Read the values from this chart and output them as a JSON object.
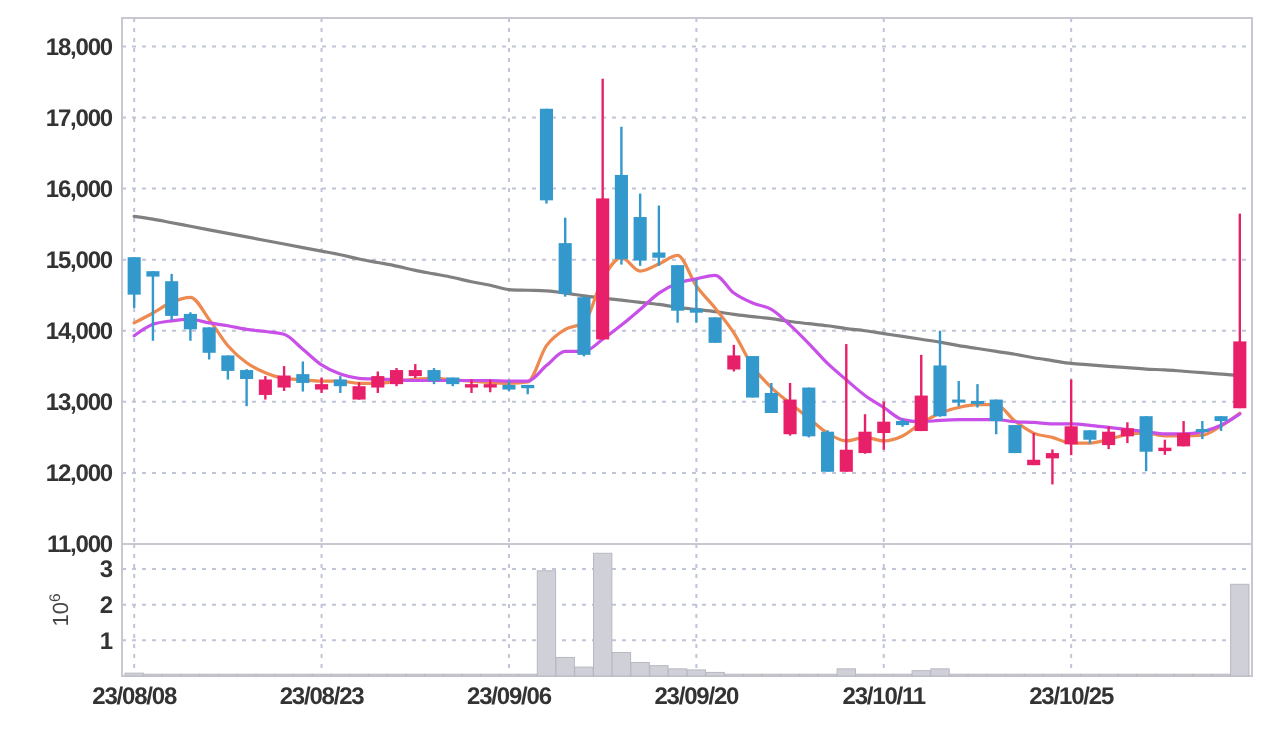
{
  "chart_data": [
    {
      "type": "candlestick",
      "categories": [
        null,
        null,
        null,
        null,
        null,
        null,
        null,
        null,
        null,
        null,
        null,
        null,
        null,
        null,
        null,
        null,
        null,
        null,
        null,
        null,
        null,
        null,
        null,
        null,
        null,
        null,
        null,
        null,
        null,
        null,
        null,
        null,
        null,
        null,
        null,
        null,
        null,
        null,
        null,
        null,
        null,
        null,
        null,
        null,
        null,
        null,
        null,
        null,
        null,
        null,
        null,
        null,
        null,
        null,
        null,
        null,
        null,
        null,
        null,
        null
      ],
      "ohlc": [
        [
          15035,
          15035,
          14321,
          14508
        ],
        [
          14838,
          14838,
          13859,
          14762
        ],
        [
          14697,
          14800,
          14152,
          14209
        ],
        [
          14237,
          14260,
          13859,
          14020
        ],
        [
          14048,
          14048,
          13596,
          13690
        ],
        [
          13653,
          13653,
          13314,
          13435
        ],
        [
          13447,
          13460,
          12939,
          13322
        ],
        [
          13097,
          13362,
          13032,
          13314
        ],
        [
          13201,
          13503,
          13153,
          13370
        ],
        [
          13390,
          13568,
          13145,
          13266
        ],
        [
          13173,
          13342,
          13125,
          13249
        ],
        [
          13314,
          13362,
          13125,
          13220
        ],
        [
          13032,
          13277,
          13032,
          13220
        ],
        [
          13201,
          13427,
          13125,
          13362
        ],
        [
          13249,
          13475,
          13220,
          13447
        ],
        [
          13362,
          13531,
          13334,
          13447
        ],
        [
          13447,
          13475,
          13249,
          13295
        ],
        [
          13342,
          13342,
          13220,
          13249
        ],
        [
          13201,
          13314,
          13125,
          13249
        ],
        [
          13201,
          13314,
          13135,
          13249
        ],
        [
          13238,
          13295,
          13153,
          13173
        ],
        [
          13238,
          13238,
          13107,
          13192
        ],
        [
          17123,
          17123,
          15789,
          15835
        ],
        [
          15233,
          15591,
          14480,
          14519
        ],
        [
          14471,
          14480,
          13640,
          13661
        ],
        [
          13878,
          17547,
          13878,
          15862
        ],
        [
          16192,
          16870,
          14931,
          15007
        ],
        [
          15600,
          15930,
          14914,
          14988
        ],
        [
          15101,
          15761,
          14914,
          15027
        ],
        [
          14923,
          14923,
          14113,
          14282
        ],
        [
          14310,
          14725,
          14113,
          14254
        ],
        [
          14189,
          14189,
          13830,
          13830
        ],
        [
          13455,
          13802,
          13427,
          13653
        ],
        [
          13644,
          13644,
          13060,
          13060
        ],
        [
          13125,
          13266,
          12843,
          12843
        ],
        [
          12544,
          13266,
          12525,
          13032
        ],
        [
          13201,
          13201,
          12500,
          12515
        ],
        [
          12580,
          12600,
          12016,
          12016
        ],
        [
          12016,
          13813,
          12016,
          12326
        ],
        [
          12279,
          12826,
          12270,
          12580
        ],
        [
          12561,
          13004,
          12326,
          12721
        ],
        [
          12730,
          12760,
          12650,
          12673
        ],
        [
          12589,
          13661,
          12589,
          13088
        ],
        [
          13512,
          14000,
          12790,
          12798
        ],
        [
          13032,
          13294,
          12939,
          13020
        ],
        [
          13012,
          13249,
          12920,
          13000
        ],
        [
          13032,
          13032,
          12544,
          12730
        ],
        [
          12673,
          12673,
          12279,
          12279
        ],
        [
          12109,
          12561,
          12109,
          12185
        ],
        [
          12205,
          12330,
          11838,
          12279
        ],
        [
          12402,
          13314,
          12250,
          12656
        ],
        [
          12600,
          12600,
          12410,
          12467
        ],
        [
          12391,
          12656,
          12335,
          12580
        ],
        [
          12515,
          12712,
          12420,
          12628
        ],
        [
          12798,
          12798,
          12024,
          12298
        ],
        [
          12307,
          12467,
          12255,
          12355
        ],
        [
          12374,
          12730,
          12374,
          12561
        ],
        [
          12617,
          12730,
          12476,
          12580
        ],
        [
          12798,
          12798,
          12591,
          12730
        ],
        [
          12910,
          15648,
          12910,
          13850
        ]
      ],
      "colors": [
        "#3399cc",
        "#3399cc",
        "#3399cc",
        "#3399cc",
        "#3399cc",
        "#3399cc",
        "#3399cc",
        "#e8206a",
        "#e8206a",
        "#3399cc",
        "#e8206a",
        "#3399cc",
        "#e8206a",
        "#e8206a",
        "#e8206a",
        "#e8206a",
        "#3399cc",
        "#3399cc",
        "#e8206a",
        "#e8206a",
        "#3399cc",
        "#3399cc",
        "#3399cc",
        "#3399cc",
        "#3399cc",
        "#e8206a",
        "#3399cc",
        "#3399cc",
        "#3399cc",
        "#3399cc",
        "#3399cc",
        "#3399cc",
        "#e8206a",
        "#3399cc",
        "#3399cc",
        "#e8206a",
        "#3399cc",
        "#3399cc",
        "#e8206a",
        "#e8206a",
        "#e8206a",
        "#3399cc",
        "#e8206a",
        "#3399cc",
        "#3399cc",
        "#3399cc",
        "#3399cc",
        "#3399cc",
        "#e8206a",
        "#e8206a",
        "#e8206a",
        "#3399cc",
        "#e8206a",
        "#e8206a",
        "#3399cc",
        "#e8206a",
        "#e8206a",
        "#3399cc",
        "#3399cc",
        "#e8206a"
      ],
      "series": [
        {
          "type": "line",
          "color": "#808080",
          "values": [
            15610,
            15570,
            15520,
            15470,
            15420,
            15370,
            15320,
            15270,
            15220,
            15170,
            15120,
            15070,
            15010,
            14960,
            14910,
            14850,
            14800,
            14750,
            14690,
            14640,
            14580,
            14570,
            14560,
            14530,
            14490,
            14460,
            14430,
            14400,
            14370,
            14330,
            14300,
            14270,
            14230,
            14200,
            14170,
            14130,
            14100,
            14070,
            14030,
            14000,
            13960,
            13920,
            13880,
            13840,
            13790,
            13750,
            13710,
            13670,
            13620,
            13580,
            13540,
            13520,
            13500,
            13480,
            13460,
            13450,
            13430,
            13410,
            13390,
            13370
          ]
        },
        {
          "type": "line",
          "color": "#ee8a4f",
          "values": [
            14110,
            14250,
            14400,
            14470,
            14160,
            13790,
            13550,
            13410,
            13330,
            13310,
            13290,
            13290,
            13260,
            13260,
            13290,
            13320,
            13330,
            13310,
            13290,
            13270,
            13260,
            13280,
            13790,
            14020,
            14110,
            14730,
            15030,
            14840,
            14940,
            15060,
            14630,
            14320,
            13970,
            13500,
            13200,
            12980,
            12770,
            12560,
            12450,
            12500,
            12450,
            12520,
            12700,
            12840,
            12920,
            12960,
            12960,
            12730,
            12560,
            12500,
            12420,
            12420,
            12470,
            12540,
            12560,
            12520,
            12520,
            12530,
            12660,
            12840
          ]
        },
        {
          "type": "line",
          "color": "#c850e8",
          "values": [
            13930,
            14090,
            14140,
            14160,
            14110,
            14070,
            14020,
            13990,
            13950,
            13740,
            13520,
            13390,
            13330,
            13320,
            13310,
            13300,
            13300,
            13300,
            13300,
            13300,
            13290,
            13290,
            13510,
            13710,
            13710,
            13880,
            14080,
            14300,
            14530,
            14670,
            14730,
            14780,
            14530,
            14390,
            14300,
            14080,
            13820,
            13540,
            13310,
            13090,
            12920,
            12750,
            12720,
            12740,
            12750,
            12750,
            12750,
            12720,
            12710,
            12690,
            12690,
            12670,
            12640,
            12610,
            12580,
            12550,
            12550,
            12580,
            12670,
            12830
          ]
        }
      ],
      "ylim": [
        11000,
        18400
      ],
      "yticks": [
        {
          "value": 11000,
          "label": "11,000"
        },
        {
          "value": 12000,
          "label": "12,000"
        },
        {
          "value": 13000,
          "label": "13,000"
        },
        {
          "value": 14000,
          "label": "14,000"
        },
        {
          "value": 15000,
          "label": "15,000"
        },
        {
          "value": 16000,
          "label": "16,000"
        },
        {
          "value": 17000,
          "label": "17,000"
        },
        {
          "value": 18000,
          "label": "18,000"
        }
      ],
      "grid": true,
      "tick_labels": "y"
    },
    {
      "type": "bar",
      "categories": [
        "23/08/08",
        null,
        null,
        null,
        null,
        null,
        null,
        null,
        null,
        null,
        "23/08/23",
        null,
        null,
        null,
        null,
        null,
        null,
        null,
        null,
        null,
        "23/09/06",
        null,
        null,
        null,
        null,
        null,
        null,
        null,
        null,
        null,
        "23/09/20",
        null,
        null,
        null,
        null,
        null,
        null,
        null,
        null,
        null,
        "23/10/11",
        null,
        null,
        null,
        null,
        null,
        null,
        null,
        null,
        null,
        "23/10/25",
        null,
        null,
        null,
        null,
        null,
        null,
        null,
        null,
        null
      ],
      "values": [
        0.08,
        0.05,
        0.05,
        0.05,
        0.05,
        0.05,
        0.05,
        0.05,
        0.05,
        0.05,
        0.05,
        0.05,
        0.05,
        0.05,
        0.05,
        0.05,
        0.05,
        0.05,
        0.05,
        0.05,
        0.05,
        0.05,
        2.95,
        0.52,
        0.25,
        3.44,
        0.66,
        0.38,
        0.29,
        0.2,
        0.17,
        0.1,
        0.05,
        0.05,
        0.05,
        0.05,
        0.05,
        0.05,
        0.2,
        0.05,
        0.05,
        0.05,
        0.15,
        0.2,
        0.05,
        0.05,
        0.05,
        0.05,
        0.05,
        0.05,
        0.05,
        0.05,
        0.05,
        0.05,
        0.05,
        0.05,
        0.05,
        0.05,
        0.05,
        2.57
      ],
      "color": "#d0d0d8",
      "ylabel": "10$^{6}$",
      "ylim": [
        0,
        3.7
      ],
      "yticks": [
        1,
        2,
        3
      ],
      "grid": true
    }
  ]
}
